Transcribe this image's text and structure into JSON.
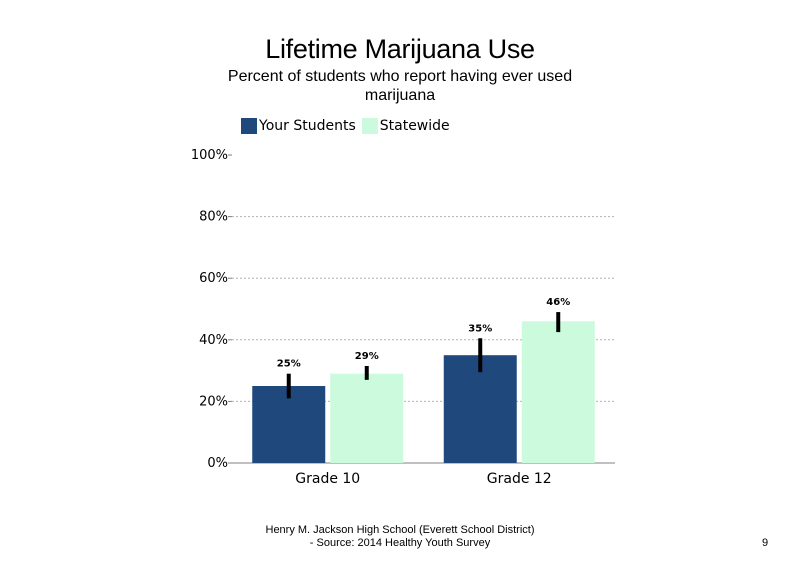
{
  "chart_data": {
    "type": "bar",
    "title": "Lifetime Marijuana Use",
    "subtitle": "Percent of students  who report having ever used marijuana",
    "categories": [
      "Grade 10",
      "Grade 12"
    ],
    "series": [
      {
        "name": "Your Students",
        "color": "#1f497d",
        "values": [
          25,
          35
        ],
        "labels": [
          "25%",
          "35%"
        ],
        "error_low": [
          21,
          29.5
        ],
        "error_high": [
          29,
          40.5
        ]
      },
      {
        "name": "Statewide",
        "color": "#ccfadc",
        "values": [
          29,
          46
        ],
        "labels": [
          "29%",
          "46%"
        ],
        "error_low": [
          27,
          42.5
        ],
        "error_high": [
          31.5,
          49
        ]
      }
    ],
    "ylim": [
      0,
      100
    ],
    "yticks": [
      0,
      20,
      40,
      60,
      80,
      100
    ],
    "ytick_labels": [
      "0%",
      "20%",
      "40%",
      "60%",
      "80%",
      "100%"
    ],
    "grid": true,
    "legend_position": "top-left"
  },
  "footer": {
    "line1": "Henry M.  Jackson High  School (Everett School District)",
    "line2": "- Source: 2014 Healthy  Youth Survey"
  },
  "page_number": "9"
}
